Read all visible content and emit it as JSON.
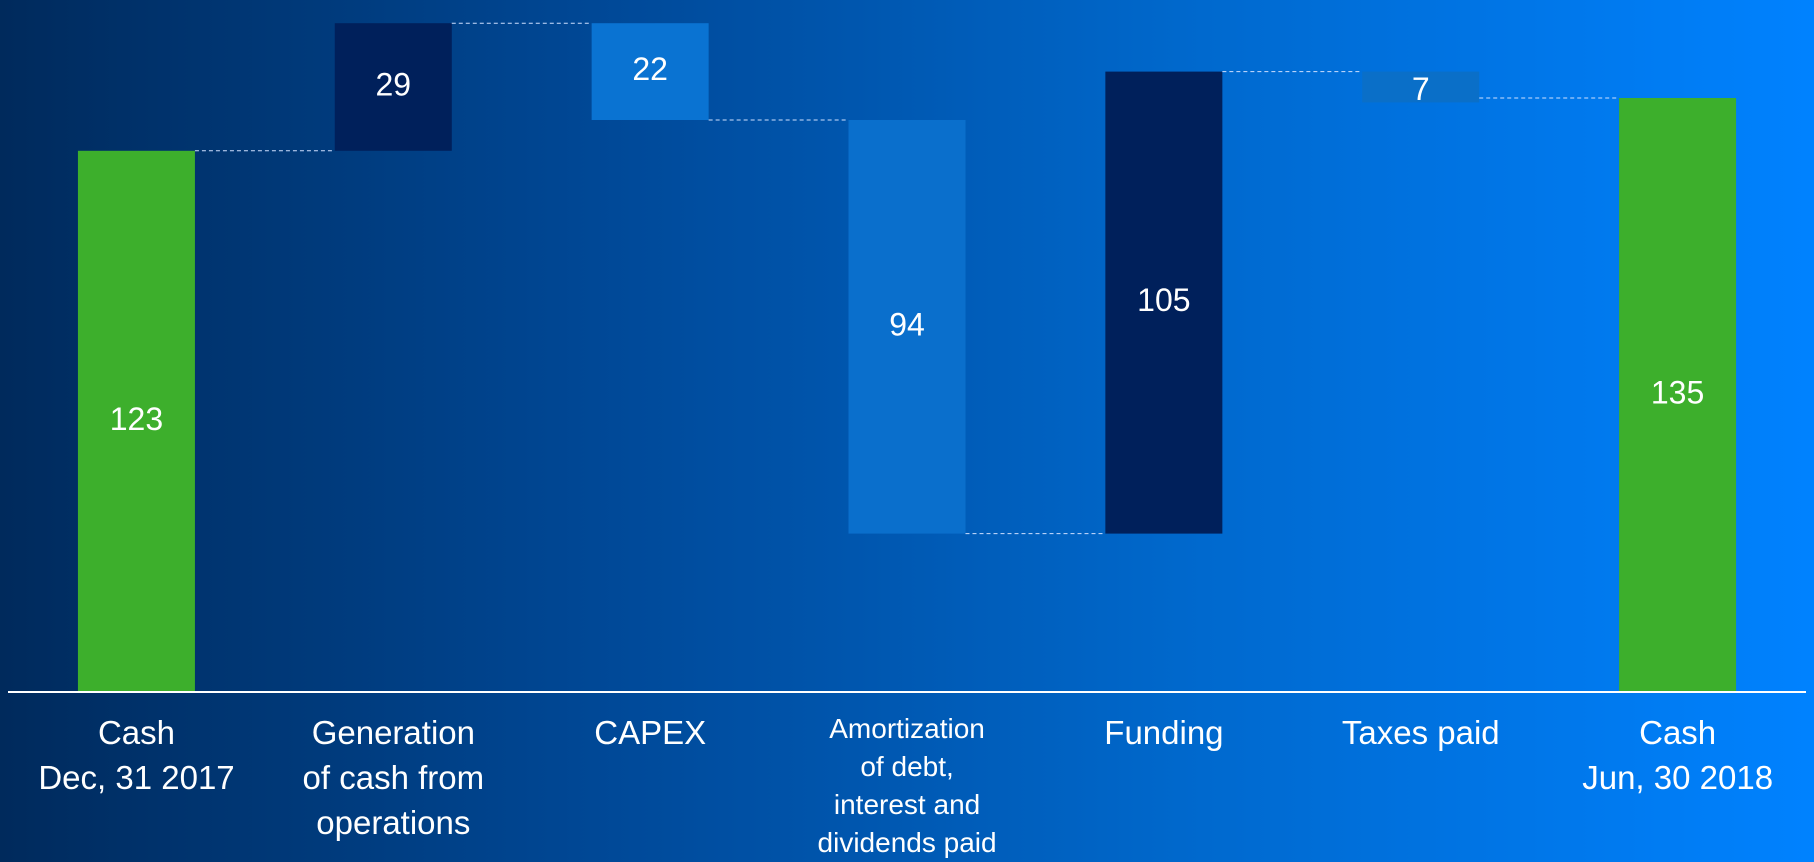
{
  "chart_data": {
    "type": "waterfall",
    "categories": [
      "Cash\nDec, 31 2017",
      "Generation\nof cash from\noperations",
      "CAPEX",
      "Amortization\nof debt,\ninterest and\ndividends paid",
      "Funding",
      "Taxes paid",
      "Cash\nJun, 30 2018"
    ],
    "values": [
      123,
      29,
      -22,
      -94,
      105,
      -7,
      135
    ],
    "value_labels": [
      "123",
      "29",
      "22",
      "94",
      "105",
      "7",
      "135"
    ],
    "is_total": [
      true,
      false,
      false,
      false,
      false,
      false,
      true
    ],
    "colors": [
      "#3daf2c",
      "#00205b",
      "#0a73d2",
      "#0a6fcc",
      "#00205b",
      "#0a6fc8",
      "#3daf2c"
    ],
    "ylim": [
      0,
      155
    ]
  }
}
